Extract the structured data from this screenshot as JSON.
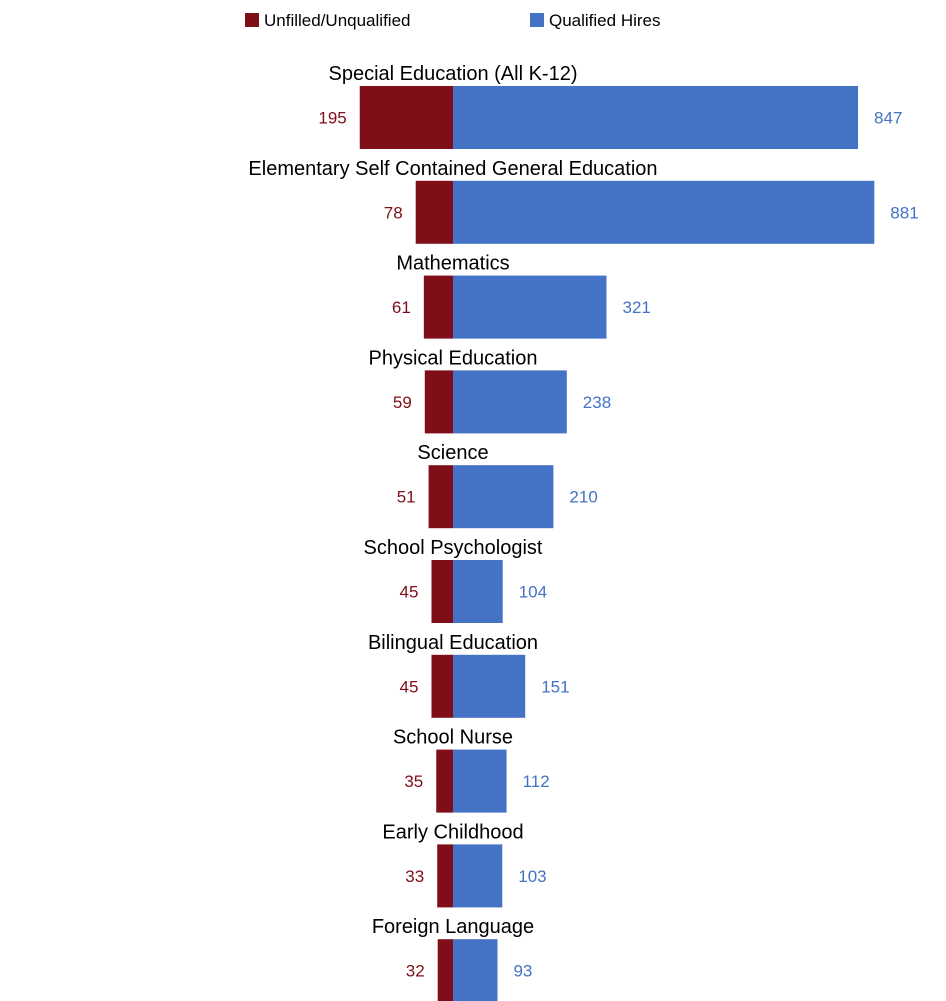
{
  "chart_data": {
    "type": "bar",
    "orientation": "horizontal-diverging",
    "categories": [
      "Special Education (All K-12)",
      "Elementary Self Contained General Education",
      "Mathematics",
      "Physical Education",
      "Science",
      "School Psychologist",
      "Bilingual Education",
      "School Nurse",
      "Early Childhood",
      "Foreign Language"
    ],
    "series": [
      {
        "name": "Unfilled/Unqualified",
        "values": [
          195,
          78,
          61,
          59,
          51,
          45,
          45,
          35,
          33,
          32
        ],
        "color": "#7F0E18",
        "direction": "left"
      },
      {
        "name": "Qualified Hires",
        "values": [
          847,
          881,
          321,
          238,
          210,
          104,
          151,
          112,
          103,
          93
        ],
        "color": "#4472C4",
        "direction": "right"
      }
    ],
    "legend_position": "top-center",
    "grid": false,
    "axes_visible": false,
    "data_labels": true
  }
}
